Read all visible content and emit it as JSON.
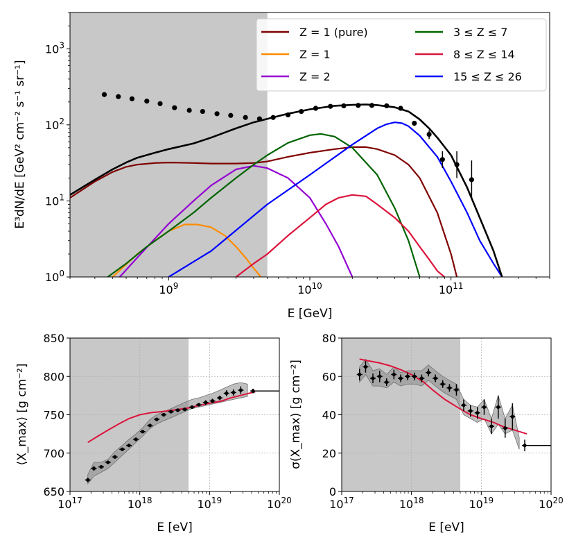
{
  "chart_data": [
    {
      "type": "line",
      "xscale": "log",
      "yscale": "log",
      "xlabel": "E [GeV]",
      "ylabel": "E³dN/dE [GeV² cm⁻² s⁻¹ sr⁻¹]",
      "xlim": [
        200000000.0,
        500000000000.0
      ],
      "ylim": [
        1,
        3000
      ],
      "x_ticks": [
        {
          "v": 1000000000.0,
          "b": "10",
          "e": "9"
        },
        {
          "v": 10000000000.0,
          "b": "10",
          "e": "10"
        },
        {
          "v": 100000000000.0,
          "b": "10",
          "e": "11"
        }
      ],
      "y_ticks": [
        {
          "v": 1,
          "b": "10",
          "e": "0"
        },
        {
          "v": 10,
          "b": "10",
          "e": "1"
        },
        {
          "v": 100,
          "b": "10",
          "e": "2"
        },
        {
          "v": 1000,
          "b": "10",
          "e": "3"
        }
      ],
      "shaded_region_x": [
        200000000.0,
        5000000000.0
      ],
      "legend": "top-right",
      "series": [
        {
          "name": "Z = 1 (pure)",
          "color": "#7f0000",
          "in_legend": true,
          "x": [
            200000000.0,
            300000000.0,
            400000000.0,
            500000000.0,
            600000000.0,
            800000000.0,
            1000000000.0,
            1500000000.0,
            2000000000.0,
            3000000000.0,
            4000000000.0,
            5000000000.0,
            7000000000.0,
            10000000000.0,
            15000000000.0,
            20000000000.0,
            25000000000.0,
            30000000000.0,
            40000000000.0,
            50000000000.0,
            60000000000.0,
            80000000000.0,
            100000000000.0,
            110000000000.0
          ],
          "y": [
            11,
            18,
            24,
            28,
            30,
            31.5,
            32,
            31.5,
            31,
            31,
            31.5,
            33,
            38,
            43,
            48,
            51,
            51,
            48,
            40,
            30,
            20,
            7,
            2,
            1
          ]
        },
        {
          "name": "Z = 1",
          "color": "#ff8c00",
          "in_legend": true,
          "x": [
            400000000.0,
            600000000.0,
            800000000.0,
            1000000000.0,
            1300000000.0,
            1600000000.0,
            2000000000.0,
            2500000000.0,
            3000000000.0,
            3500000000.0,
            4000000000.0,
            4500000000.0
          ],
          "y": [
            1,
            2,
            3,
            4,
            4.9,
            4.9,
            4.5,
            3.5,
            2.5,
            1.8,
            1.3,
            1
          ]
        },
        {
          "name": "Z = 2",
          "color": "#9400d3",
          "in_legend": true,
          "x": [
            450000000.0,
            600000000.0,
            800000000.0,
            1000000000.0,
            1500000000.0,
            2000000000.0,
            3000000000.0,
            4000000000.0,
            5000000000.0,
            7000000000.0,
            10000000000.0,
            13000000000.0,
            16000000000.0,
            20000000000.0
          ],
          "y": [
            1,
            1.8,
            3.2,
            5,
            10,
            16,
            26,
            29,
            27,
            20,
            11,
            5,
            2.5,
            1
          ]
        },
        {
          "name": "3 ≤ Z ≤ 7",
          "color": "#006400",
          "in_legend": true,
          "x": [
            370000000.0,
            500000000.0,
            700000000.0,
            1000000000.0,
            1500000000.0,
            2000000000.0,
            3000000000.0,
            4000000000.0,
            5000000000.0,
            7000000000.0,
            10000000000.0,
            12000000000.0,
            15000000000.0,
            20000000000.0,
            30000000000.0,
            40000000000.0,
            50000000000.0,
            60000000000.0
          ],
          "y": [
            1,
            1.5,
            2.5,
            4,
            7,
            11,
            20,
            30,
            40,
            58,
            73,
            76,
            70,
            50,
            22,
            8,
            3,
            1
          ]
        },
        {
          "name": "8 ≤ Z ≤ 14",
          "color": "#dc143c",
          "in_legend": true,
          "x": [
            3000000000.0,
            4000000000.0,
            5000000000.0,
            7000000000.0,
            10000000000.0,
            13000000000.0,
            16000000000.0,
            20000000000.0,
            25000000000.0,
            30000000000.0,
            40000000000.0,
            50000000000.0,
            60000000000.0,
            70000000000.0,
            80000000000.0,
            90000000000.0
          ],
          "y": [
            1,
            1.5,
            2,
            3.5,
            6,
            9,
            11,
            12,
            11.5,
            9,
            6,
            4,
            2.5,
            1.7,
            1.2,
            1
          ]
        },
        {
          "name": "15 ≤ Z ≤ 26",
          "color": "#0000ff",
          "in_legend": true,
          "x": [
            1000000000.0,
            2000000000.0,
            5000000000.0,
            10000000000.0,
            20000000000.0,
            30000000000.0,
            35000000000.0,
            40000000000.0,
            45000000000.0,
            50000000000.0,
            60000000000.0,
            80000000000.0,
            100000000000.0,
            130000000000.0,
            160000000000.0,
            200000000000.0,
            230000000000.0
          ],
          "y": [
            1,
            2.2,
            9,
            22,
            55,
            90,
            102,
            108,
            105,
            96,
            72,
            38,
            18,
            7,
            3,
            1.5,
            1
          ]
        },
        {
          "name": "total",
          "color": "#000000",
          "in_legend": false,
          "x": [
            200000000.0,
            300000000.0,
            400000000.0,
            500000000.0,
            600000000.0,
            800000000.0,
            1000000000.0,
            1500000000.0,
            2000000000.0,
            3000000000.0,
            4000000000.0,
            5000000000.0,
            7000000000.0,
            10000000000.0,
            15000000000.0,
            20000000000.0,
            25000000000.0,
            30000000000.0,
            40000000000.0,
            50000000000.0,
            60000000000.0,
            70000000000.0,
            80000000000.0,
            100000000000.0,
            130000000000.0,
            160000000000.0,
            200000000000.0,
            230000000000.0
          ],
          "y": [
            12,
            19,
            26,
            32,
            37,
            43,
            48,
            57,
            68,
            90,
            108,
            120,
            140,
            160,
            178,
            183,
            185,
            182,
            170,
            150,
            118,
            90,
            68,
            40,
            15,
            6,
            2.2,
            1
          ]
        }
      ],
      "points": {
        "name": "data",
        "color": "#000000",
        "x": [
          350000000.0,
          440000000.0,
          550000000.0,
          700000000.0,
          870000000.0,
          1100000000.0,
          1400000000.0,
          1740000000.0,
          2200000000.0,
          2750000000.0,
          3500000000.0,
          4400000000.0,
          5500000000.0,
          7000000000.0,
          8700000000.0,
          11000000000.0,
          14000000000.0,
          17400000000.0,
          22000000000.0,
          27500000000.0,
          35000000000.0,
          44000000000.0,
          55000000000.0,
          70000000000.0,
          87000000000.0,
          110000000000.0,
          140000000000.0
        ],
        "y": [
          250,
          235,
          220,
          205,
          190,
          168,
          155,
          150,
          140,
          133,
          125,
          120,
          125,
          135,
          150,
          165,
          175,
          178,
          180,
          180,
          178,
          165,
          105,
          75,
          35,
          30,
          19
        ],
        "yerr_lo": [
          0,
          0,
          0,
          0,
          0,
          0,
          0,
          0,
          0,
          0,
          0,
          0,
          0,
          0,
          0,
          0,
          0,
          0,
          0,
          0,
          0,
          0,
          8,
          10,
          8,
          10,
          8
        ],
        "yerr_hi": [
          0,
          0,
          0,
          0,
          0,
          0,
          0,
          0,
          0,
          0,
          0,
          0,
          0,
          0,
          0,
          0,
          0,
          0,
          0,
          0,
          0,
          0,
          8,
          10,
          10,
          15,
          15
        ]
      },
      "legend_entries": [
        {
          "label": "Z = 1 (pure)",
          "color": "#7f0000"
        },
        {
          "label": "Z = 1",
          "color": "#ff8c00"
        },
        {
          "label": "Z = 2",
          "color": "#9400d3"
        },
        {
          "label": "3 ≤ Z ≤ 7",
          "color": "#006400"
        },
        {
          "label": "8 ≤ Z ≤ 14",
          "color": "#dc143c"
        },
        {
          "label": "15 ≤ Z ≤ 26",
          "color": "#0000ff"
        }
      ]
    },
    {
      "type": "line",
      "xscale": "log",
      "xlabel": "E [eV]",
      "ylabel": "⟨X_max⟩ [g cm⁻²]",
      "xlim": [
        1e+17,
        1e+20
      ],
      "ylim": [
        650,
        850
      ],
      "grid": true,
      "x_ticks": [
        {
          "v": 1e+17,
          "b": "10",
          "e": "17"
        },
        {
          "v": 1e+18,
          "b": "10",
          "e": "18"
        },
        {
          "v": 1e+19,
          "b": "10",
          "e": "19"
        },
        {
          "v": 1e+20,
          "b": "10",
          "e": "20"
        }
      ],
      "y_ticks": [
        650,
        700,
        750,
        800,
        850
      ],
      "shaded_region_x": [
        1e+17,
        5e+18
      ],
      "model": {
        "color": "#dc143c",
        "x": [
          1.8e+17,
          2.5e+17,
          3.5e+17,
          5e+17,
          7e+17,
          1e+18,
          1.5e+18,
          2e+18,
          3e+18,
          5e+18,
          7e+18,
          1e+19,
          1.5e+19,
          2e+19,
          3e+19,
          4.5e+19
        ],
        "y": [
          714,
          722,
          730,
          738,
          745,
          750,
          753,
          754,
          756,
          759,
          762,
          765,
          768,
          772,
          776,
          780
        ]
      },
      "band": {
        "x": [
          1.8e+17,
          2.2e+17,
          2.8e+17,
          3.5e+17,
          4.4e+17,
          5.6e+17,
          7e+17,
          8.8e+17,
          1.1e+18,
          1.4e+18,
          1.75e+18,
          2.2e+18,
          2.8e+18,
          3.5e+18,
          4.4e+18,
          5.6e+18,
          7e+18,
          8.8e+18,
          1.1e+19,
          1.4e+19,
          1.75e+19,
          2.2e+19,
          2.8e+19,
          3.5e+19
        ],
        "lo": [
          660,
          670,
          675,
          680,
          688,
          697,
          705,
          714,
          722,
          732,
          738,
          742,
          746,
          750,
          754,
          758,
          760,
          762,
          764,
          766,
          768,
          770,
          772,
          774
        ],
        "hi": [
          672,
          688,
          688,
          692,
          702,
          710,
          718,
          725,
          733,
          744,
          750,
          754,
          758,
          762,
          766,
          770,
          772,
          775,
          778,
          782,
          786,
          790,
          792,
          790
        ]
      },
      "points": {
        "x": [
          1.8e+17,
          2.2e+17,
          2.8e+17,
          3.5e+17,
          4.4e+17,
          5.6e+17,
          7e+17,
          8.8e+17,
          1.1e+18,
          1.4e+18,
          1.75e+18,
          2.2e+18,
          2.8e+18,
          3.5e+18,
          4.4e+18,
          5.6e+18,
          7e+18,
          8.8e+18,
          1.1e+19,
          1.4e+19,
          1.75e+19,
          2.2e+19,
          2.8e+19,
          4.2e+19
        ],
        "y": [
          665,
          680,
          682,
          688,
          695,
          705,
          710,
          718,
          728,
          736,
          744,
          750,
          754,
          756,
          757,
          760,
          763,
          766,
          768,
          772,
          778,
          779,
          782,
          781
        ],
        "err": [
          3,
          3,
          2,
          2,
          2,
          2,
          2,
          2,
          2,
          2,
          2,
          2,
          2,
          2,
          2,
          2,
          2,
          3,
          3,
          3,
          4,
          4,
          5,
          3
        ]
      },
      "hline": {
        "x": [
          4.2e+19,
          1e+20
        ],
        "y": 781
      }
    },
    {
      "type": "line",
      "xscale": "log",
      "xlabel": "E [eV]",
      "ylabel": "σ(X_max) [g cm⁻²]",
      "xlim": [
        1e+17,
        1e+20
      ],
      "ylim": [
        0,
        80
      ],
      "grid": true,
      "x_ticks": [
        {
          "v": 1e+17,
          "b": "10",
          "e": "17"
        },
        {
          "v": 1e+18,
          "b": "10",
          "e": "18"
        },
        {
          "v": 1e+19,
          "b": "10",
          "e": "19"
        },
        {
          "v": 1e+20,
          "b": "10",
          "e": "20"
        }
      ],
      "y_ticks": [
        0,
        20,
        40,
        60,
        80
      ],
      "shaded_region_x": [
        1e+17,
        5e+18
      ],
      "model": {
        "color": "#dc143c",
        "x": [
          1.8e+17,
          2.5e+17,
          3.5e+17,
          5e+17,
          7e+17,
          1e+18,
          1.5e+18,
          2e+18,
          3e+18,
          5e+18,
          7e+18,
          1e+19,
          1.5e+19,
          2e+19,
          3e+19,
          4.5e+19
        ],
        "y": [
          69,
          68,
          67,
          65.5,
          63.5,
          61,
          57,
          53,
          48,
          43,
          40,
          38,
          36,
          34,
          32,
          30
        ]
      },
      "band": {
        "x": [
          1.8e+17,
          2.2e+17,
          2.8e+17,
          3.5e+17,
          4.4e+17,
          5.6e+17,
          7e+17,
          8.8e+17,
          1.1e+18,
          1.4e+18,
          1.75e+18,
          2.2e+18,
          2.8e+18,
          3.5e+18,
          4.4e+18,
          5.6e+18,
          7e+18,
          8.8e+18,
          1.1e+19,
          1.4e+19,
          1.75e+19,
          2.2e+19,
          2.8e+19,
          3.5e+19
        ],
        "lo": [
          57,
          61,
          55,
          55,
          54,
          57,
          55,
          56,
          56,
          55,
          58,
          55,
          52,
          50,
          48,
          40,
          38,
          36,
          38,
          30,
          35,
          30,
          32,
          22
        ],
        "hi": [
          65,
          69,
          63,
          64,
          61,
          65,
          62,
          63,
          63,
          63,
          66,
          63,
          60,
          58,
          56,
          48,
          45,
          44,
          48,
          38,
          50,
          38,
          45,
          28
        ]
      },
      "points": {
        "x": [
          1.8e+17,
          2.2e+17,
          2.8e+17,
          3.5e+17,
          4.4e+17,
          5.6e+17,
          7e+17,
          8.8e+17,
          1.1e+18,
          1.4e+18,
          1.75e+18,
          2.2e+18,
          2.8e+18,
          3.5e+18,
          4.4e+18,
          5.6e+18,
          7e+18,
          8.8e+18,
          1.1e+19,
          1.4e+19,
          1.75e+19,
          2.2e+19,
          2.8e+19,
          4.2e+19
        ],
        "y": [
          61,
          65,
          59,
          60,
          57,
          61,
          59,
          60,
          60,
          59,
          62,
          59,
          56,
          54,
          53,
          45,
          42,
          41,
          44,
          34,
          44,
          33,
          39,
          24
        ],
        "err": [
          3,
          3,
          2.5,
          3,
          2,
          2.5,
          2,
          2,
          2,
          2,
          2,
          2,
          2,
          2,
          3,
          3,
          3,
          3,
          4,
          4,
          6,
          5,
          7,
          3
        ]
      },
      "hline": {
        "x": [
          4.2e+19,
          1e+20
        ],
        "y": 24
      }
    }
  ]
}
